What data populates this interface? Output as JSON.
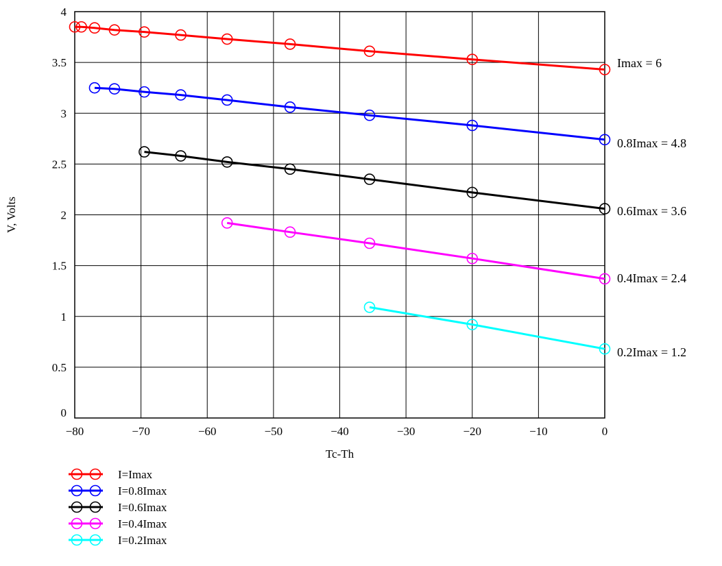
{
  "chart_data": {
    "type": "line",
    "title": "",
    "xlabel": "Tc-Th",
    "ylabel": "V, Volts",
    "xlim": [
      -80,
      0
    ],
    "ylim": [
      0,
      4
    ],
    "grid": true,
    "legend_position": "bottom-left",
    "x_ticks": [
      {
        "value": -80,
        "label": "−80"
      },
      {
        "value": -70,
        "label": "−70"
      },
      {
        "value": -60,
        "label": "−60"
      },
      {
        "value": -50,
        "label": "−50"
      },
      {
        "value": -40,
        "label": "−40"
      },
      {
        "value": -30,
        "label": "−30"
      },
      {
        "value": -20,
        "label": "−20"
      },
      {
        "value": -10,
        "label": "−10"
      },
      {
        "value": 0,
        "label": "0"
      }
    ],
    "y_ticks": [
      {
        "value": 0,
        "label": "0"
      },
      {
        "value": 0.5,
        "label": "0.5"
      },
      {
        "value": 1,
        "label": "1"
      },
      {
        "value": 1.5,
        "label": "1.5"
      },
      {
        "value": 2,
        "label": "2"
      },
      {
        "value": 2.5,
        "label": "2.5"
      },
      {
        "value": 3,
        "label": "3"
      },
      {
        "value": 3.5,
        "label": "3.5"
      },
      {
        "value": 4,
        "label": "4"
      }
    ],
    "series": [
      {
        "name": "I=Imax",
        "color": "#ff0000",
        "end_label": "Imax = 6",
        "x": [
          -80,
          -79,
          -77,
          -74,
          -69.5,
          -64,
          -57,
          -47.5,
          -35.5,
          -20,
          0
        ],
        "y": [
          3.85,
          3.85,
          3.84,
          3.82,
          3.8,
          3.77,
          3.73,
          3.68,
          3.61,
          3.53,
          3.43
        ]
      },
      {
        "name": "I=0.8Imax",
        "color": "#0000ff",
        "end_label": "0.8Imax = 4.8",
        "x": [
          -77,
          -74,
          -69.5,
          -64,
          -57,
          -47.5,
          -35.5,
          -20,
          0
        ],
        "y": [
          3.25,
          3.24,
          3.21,
          3.18,
          3.13,
          3.06,
          2.98,
          2.88,
          2.74
        ]
      },
      {
        "name": "I=0.6Imax",
        "color": "#000000",
        "end_label": "0.6Imax = 3.6",
        "x": [
          -69.5,
          -64,
          -57,
          -47.5,
          -35.5,
          -20,
          0
        ],
        "y": [
          2.62,
          2.58,
          2.52,
          2.45,
          2.35,
          2.22,
          2.06
        ]
      },
      {
        "name": "I=0.4Imax",
        "color": "#ff00ff",
        "end_label": "0.4Imax = 2.4",
        "x": [
          -57,
          -47.5,
          -35.5,
          -20,
          0
        ],
        "y": [
          1.92,
          1.83,
          1.72,
          1.57,
          1.37
        ]
      },
      {
        "name": "I=0.2Imax",
        "color": "#00ffff",
        "end_label": "0.2Imax = 1.2",
        "x": [
          -35.5,
          -20,
          0
        ],
        "y": [
          1.09,
          0.92,
          0.68
        ]
      }
    ]
  }
}
